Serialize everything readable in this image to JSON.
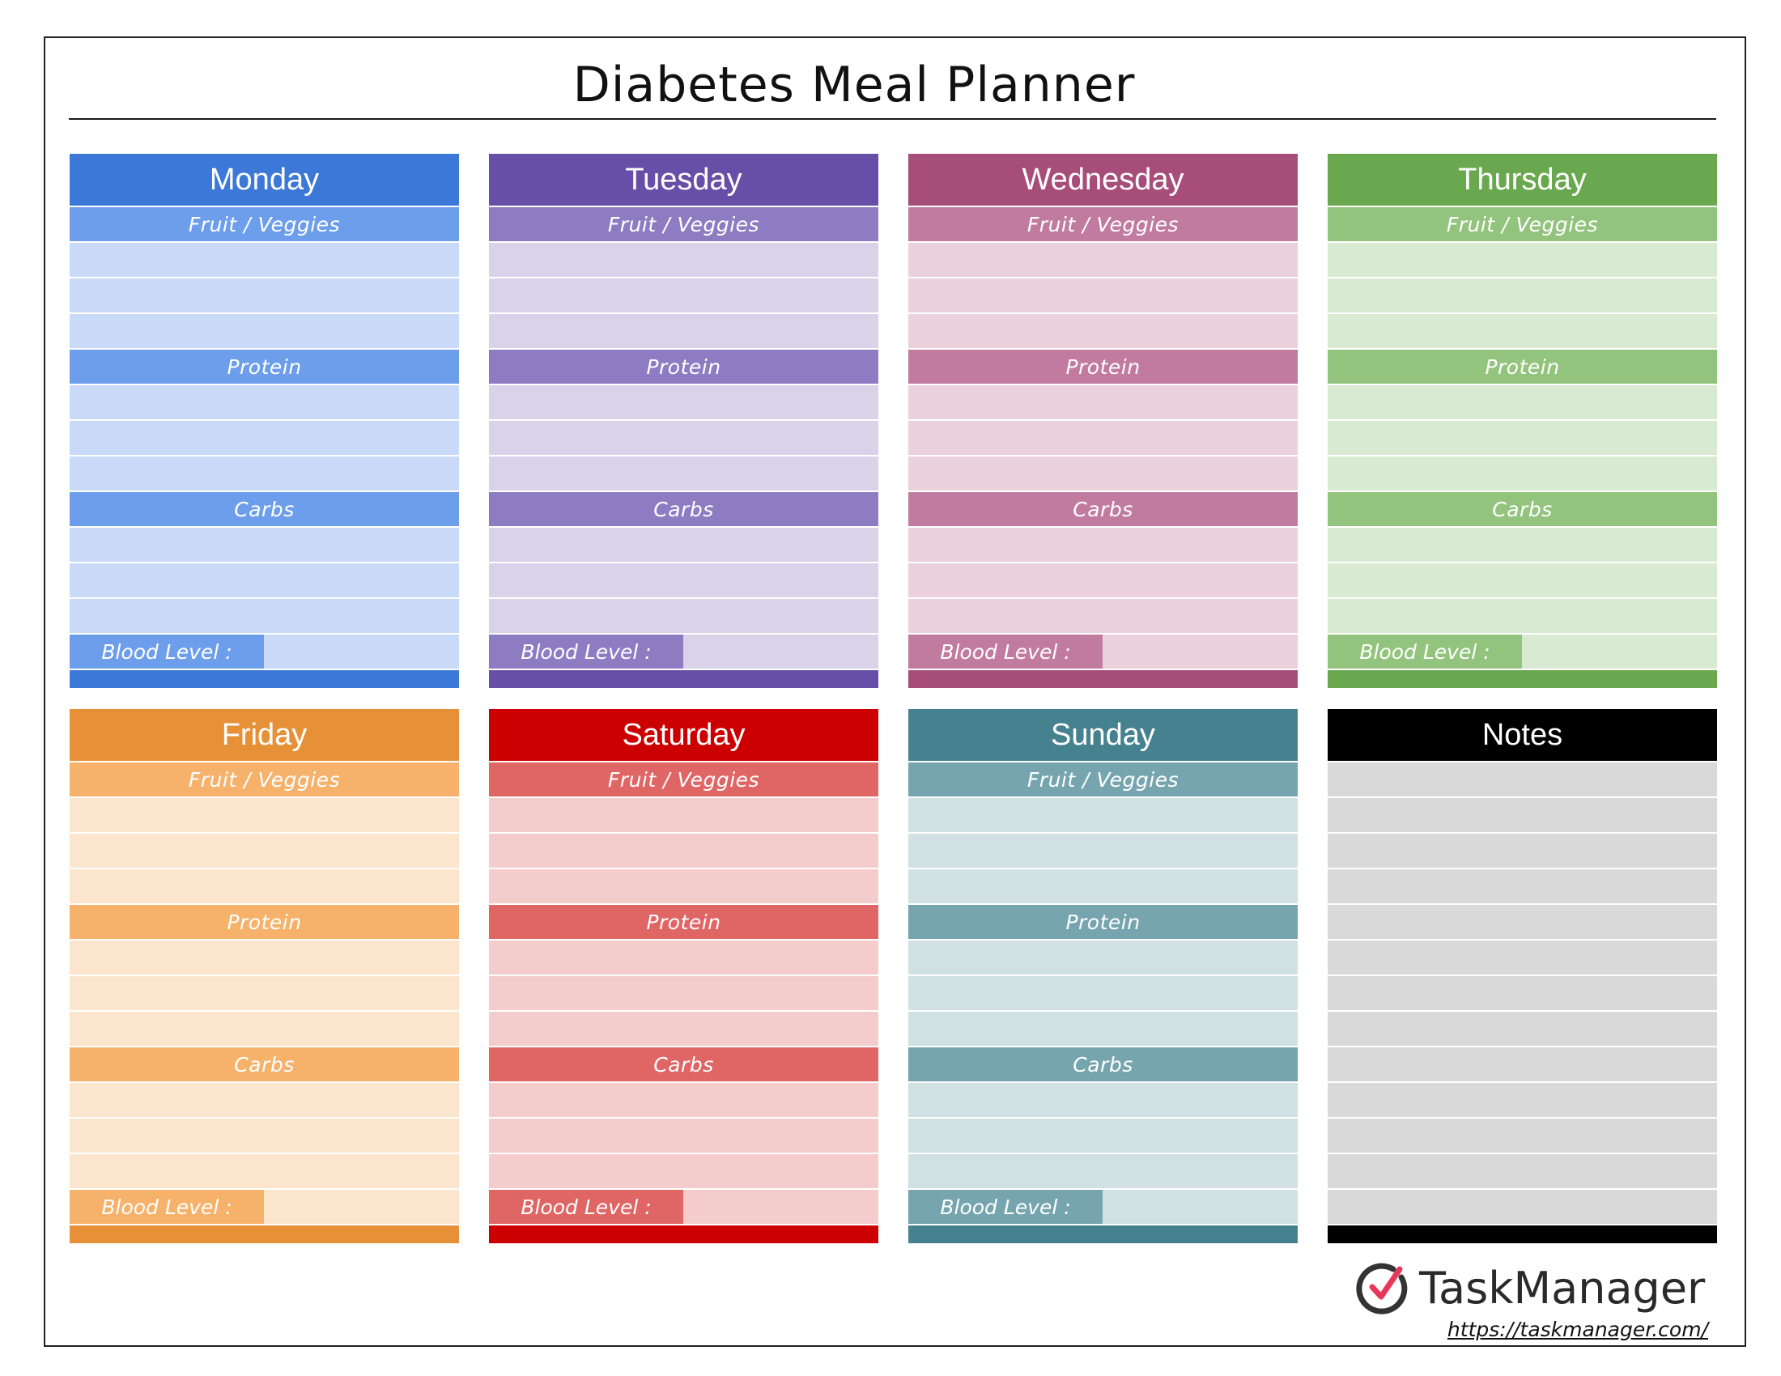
{
  "title": "Diabetes Meal Planner",
  "labels": {
    "fruit": "Fruit / Veggies",
    "protein": "Protein",
    "carbs": "Carbs",
    "blood": "Blood Level :"
  },
  "days": [
    {
      "name": "Monday",
      "colors": {
        "dark": "#3b78d8",
        "mid": "#6d9eeb",
        "light": "#c9daf8"
      }
    },
    {
      "name": "Tuesday",
      "colors": {
        "dark": "#674ea7",
        "mid": "#8e7cc3",
        "light": "#d9d2e9"
      }
    },
    {
      "name": "Wednesday",
      "colors": {
        "dark": "#a64d79",
        "mid": "#c27ba0",
        "light": "#ead1dc"
      }
    },
    {
      "name": "Thursday",
      "colors": {
        "dark": "#6aa84f",
        "mid": "#93c47d",
        "light": "#d9ead3"
      }
    },
    {
      "name": "Friday",
      "colors": {
        "dark": "#e69138",
        "mid": "#f6b26b",
        "light": "#fce5cd"
      }
    },
    {
      "name": "Saturday",
      "colors": {
        "dark": "#cc0000",
        "mid": "#e06666",
        "light": "#f4cccc"
      }
    },
    {
      "name": "Sunday",
      "colors": {
        "dark": "#45818e",
        "mid": "#76a5af",
        "light": "#d0e0e3"
      }
    }
  ],
  "notes": {
    "name": "Notes",
    "colors": {
      "dark": "#000000",
      "light": "#d9d9d9"
    }
  },
  "brand": {
    "name": "TaskManager",
    "url": "https://taskmanager.com/",
    "icon": "check-circle-icon",
    "icon_colors": {
      "ring": "#333333",
      "check": "#e8385a"
    }
  }
}
